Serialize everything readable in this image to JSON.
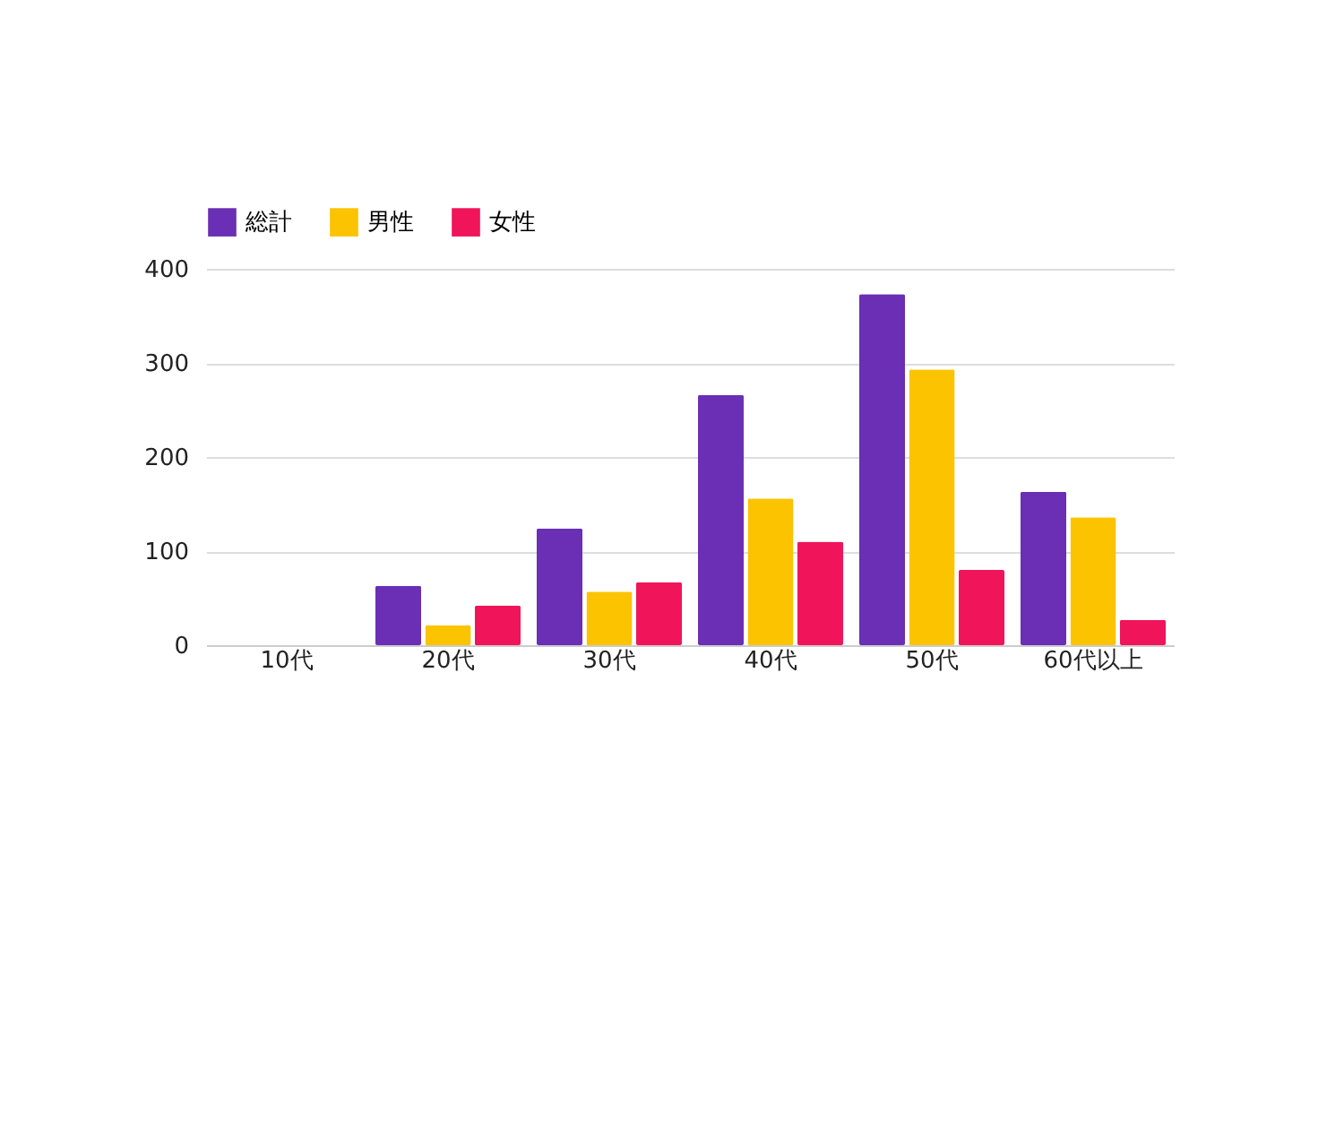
{
  "chart_data": {
    "type": "bar",
    "categories": [
      "10代",
      "20代",
      "30代",
      "40代",
      "50代",
      "60代以上"
    ],
    "series": [
      {
        "name": "総計",
        "color": "#6a2fb4",
        "values": [
          0,
          63,
          124,
          266,
          373,
          163
        ]
      },
      {
        "name": "男性",
        "color": "#fbc300",
        "values": [
          0,
          21,
          57,
          156,
          293,
          136
        ]
      },
      {
        "name": "女性",
        "color": "#f0145a",
        "values": [
          0,
          42,
          67,
          110,
          80,
          27
        ]
      }
    ],
    "ylim": [
      0,
      400
    ],
    "yticks": [
      0,
      100,
      200,
      300,
      400
    ],
    "grid": "y",
    "legend": "top"
  }
}
